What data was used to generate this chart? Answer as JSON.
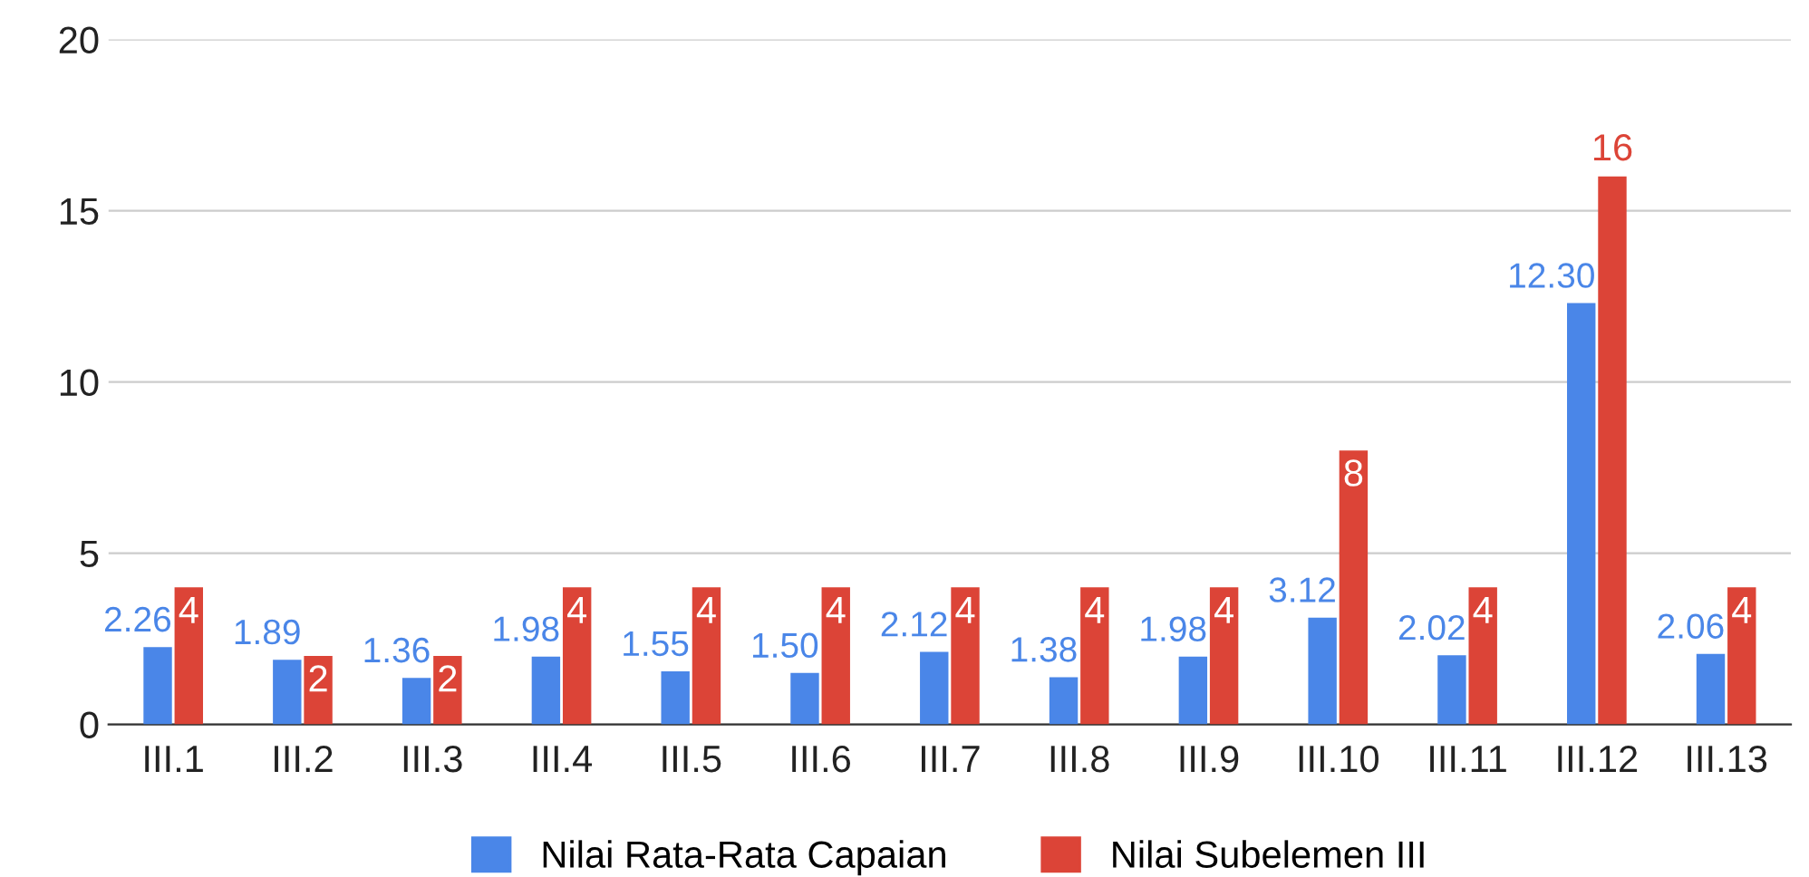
{
  "chart_data": {
    "type": "bar",
    "categories": [
      "III.1",
      "III.2",
      "III.3",
      "III.4",
      "III.5",
      "III.6",
      "III.7",
      "III.8",
      "III.9",
      "III.10",
      "III.11",
      "III.12",
      "III.13"
    ],
    "series": [
      {
        "name": "Nilai Rata-Rata Capaian",
        "color": "#4a86e8",
        "values": [
          2.26,
          1.89,
          1.36,
          1.98,
          1.55,
          1.5,
          2.12,
          1.38,
          1.98,
          3.12,
          2.02,
          12.3,
          2.06
        ],
        "value_labels": [
          "2.26",
          "1.89",
          "1.36",
          "1.98",
          "1.55",
          "1.50",
          "2.12",
          "1.38",
          "1.98",
          "3.12",
          "2.02",
          "12.30",
          "2.06"
        ]
      },
      {
        "name": "Nilai Subelemen III",
        "color": "#dc4437",
        "values": [
          4,
          2,
          2,
          4,
          4,
          4,
          4,
          4,
          4,
          8,
          4,
          16,
          4
        ],
        "value_labels": [
          "4",
          "2",
          "2",
          "4",
          "4",
          "4",
          "4",
          "4",
          "4",
          "8",
          "4",
          "16",
          "4"
        ]
      }
    ],
    "ylim": [
      0,
      20
    ],
    "yticks": [
      0,
      5,
      10,
      15,
      20
    ],
    "grid": "y",
    "legend": "bottom"
  }
}
